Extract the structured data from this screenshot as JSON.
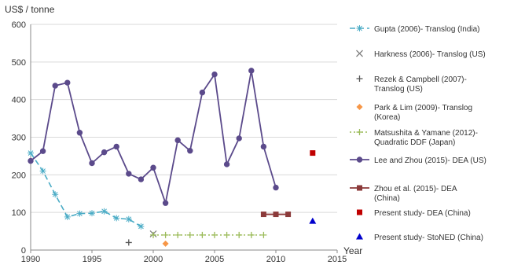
{
  "chart_data": {
    "type": "line",
    "ylabel": "US$ / tonne",
    "xlabel": "Year",
    "xlim": [
      1990,
      2015
    ],
    "ylim": [
      0,
      600
    ],
    "x_ticks": [
      "1990",
      "1995",
      "2000",
      "2005",
      "2010",
      "2015"
    ],
    "y_ticks": [
      "0",
      "100",
      "200",
      "300",
      "400",
      "500",
      "600"
    ],
    "grid": "horizontal",
    "legend_position": "right",
    "series": [
      {
        "name": "Gupta (2006)- Translog (India)",
        "style": "dashed",
        "marker": "star",
        "color": "#4bacc6",
        "points": [
          [
            1990,
            258
          ],
          [
            1991,
            210
          ],
          [
            1992,
            148
          ],
          [
            1993,
            88
          ],
          [
            1994,
            97
          ],
          [
            1995,
            98
          ],
          [
            1996,
            103
          ],
          [
            1997,
            85
          ],
          [
            1998,
            82
          ],
          [
            1999,
            63
          ]
        ]
      },
      {
        "name": "Harkness (2006)- Translog (US)",
        "style": "marker",
        "marker": "x",
        "color": "#808080",
        "points": [
          [
            2000,
            43
          ]
        ]
      },
      {
        "name": "Rezek & Campbell (2007)- Translog (US)",
        "style": "marker",
        "marker": "plus",
        "color": "#555555",
        "points": [
          [
            1998,
            20
          ]
        ]
      },
      {
        "name": "Park & Lim (2009)- Translog (Korea)",
        "style": "marker",
        "marker": "diamond",
        "color": "#f79646",
        "points": [
          [
            2001,
            17
          ]
        ]
      },
      {
        "name": "Matsushita & Yamane (2012)- Quadratic DDF (Japan)",
        "style": "dotted",
        "marker": "plus",
        "color": "#9bbb59",
        "points": [
          [
            2000,
            40
          ],
          [
            2001,
            40
          ],
          [
            2002,
            40
          ],
          [
            2003,
            40
          ],
          [
            2004,
            40
          ],
          [
            2005,
            40
          ],
          [
            2006,
            40
          ],
          [
            2007,
            40
          ],
          [
            2008,
            40
          ],
          [
            2009,
            40
          ]
        ]
      },
      {
        "name": "Lee and Zhou (2015)- DEA (US)",
        "style": "solid",
        "marker": "circle",
        "color": "#5b4a8b",
        "points": [
          [
            1990,
            237
          ],
          [
            1991,
            263
          ],
          [
            1992,
            437
          ],
          [
            1993,
            445
          ],
          [
            1994,
            312
          ],
          [
            1995,
            231
          ],
          [
            1996,
            260
          ],
          [
            1997,
            275
          ],
          [
            1998,
            203
          ],
          [
            1999,
            188
          ],
          [
            2000,
            219
          ],
          [
            2001,
            125
          ],
          [
            2002,
            292
          ],
          [
            2003,
            264
          ],
          [
            2004,
            419
          ],
          [
            2005,
            467
          ],
          [
            2006,
            228
          ],
          [
            2007,
            297
          ],
          [
            2008,
            477
          ],
          [
            2009,
            275
          ],
          [
            2010,
            166
          ]
        ]
      },
      {
        "name": "Zhou et al. (2015)- DEA (China)",
        "style": "solid",
        "marker": "square",
        "color": "#8b3a3a",
        "points": [
          [
            2009,
            95
          ],
          [
            2010,
            95
          ],
          [
            2011,
            95
          ]
        ]
      },
      {
        "name": "Present study- DEA (China)",
        "style": "marker",
        "marker": "square",
        "color": "#c00000",
        "points": [
          [
            2013,
            258
          ]
        ]
      },
      {
        "name": "Present study- StoNED (China)",
        "style": "marker",
        "marker": "triangle",
        "color": "#0000cc",
        "points": [
          [
            2013,
            77
          ]
        ]
      }
    ]
  }
}
